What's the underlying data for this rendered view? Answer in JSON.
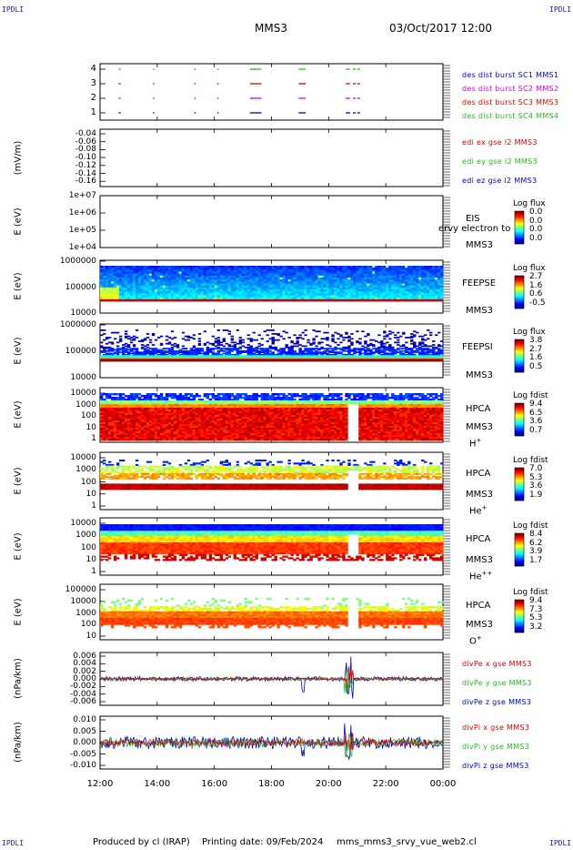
{
  "corner_mark": "IPDLI",
  "header": {
    "spacecraft": "MMS3",
    "datetime": "03/Oct/2017 12:00"
  },
  "footer": {
    "produced": "Produced by cl (IRAP)",
    "printing": "Printing date: 09/Feb/2024",
    "file": "mms_mms3_srvy_vue_web2.cl"
  },
  "colors": {
    "red": "#dd0000",
    "green": "#22bb22",
    "blue": "#0000cc",
    "magenta": "#dd00dd"
  },
  "chart_data": [
    {
      "type": "scatter",
      "id": "burst",
      "ylim": [
        0.5,
        4.5
      ],
      "ticks": [
        "4",
        "3",
        "2",
        "1"
      ],
      "legend": [
        {
          "text": "des dist burst SC1 MMS1",
          "color": "#0000cc"
        },
        {
          "text": "des dist burst SC2 MMS2",
          "color": "#dd00dd"
        },
        {
          "text": "des dist burst SC3 MMS3",
          "color": "#dd0000"
        },
        {
          "text": "des dist burst SC4 MMS4",
          "color": "#22bb22"
        }
      ],
      "segments_hours": [
        [
          12.65,
          12.72
        ],
        [
          13.85,
          13.9
        ],
        [
          15.3,
          15.35
        ],
        [
          16.1,
          16.15
        ],
        [
          17.25,
          17.65
        ],
        [
          18.95,
          19.2
        ],
        [
          20.6,
          20.75
        ],
        [
          20.85,
          20.95
        ],
        [
          21.0,
          21.1
        ]
      ]
    },
    {
      "type": "line",
      "id": "edi",
      "ylabel": "(mV/m)",
      "ticks": [
        "-0.04",
        "-0.06",
        "-0.08",
        "-0.10",
        "-0.12",
        "-0.14",
        "-0.16"
      ],
      "ylim": [
        -0.17,
        -0.03
      ],
      "legend": [
        {
          "text": "edi ex gse l2 MMS3",
          "color": "#dd0000"
        },
        {
          "text": "edi ey gse l2 MMS3",
          "color": "#22bb22"
        },
        {
          "text": "edi ez gse l2 MMS3",
          "color": "#0000cc"
        }
      ]
    },
    {
      "type": "heatmap",
      "id": "eis",
      "ylabel": "E (eV)",
      "log": true,
      "ticks": [
        "1e+07",
        "1e+06",
        "1e+05",
        "1e+04"
      ],
      "label": "EIS",
      "sublabel": "MMS3",
      "overlay": "ervy electron to",
      "cbar_title": "Log flux",
      "cbar_ticks": [
        "0.0",
        "0.0",
        "0.0",
        "0.0"
      ]
    },
    {
      "type": "heatmap",
      "id": "feepse",
      "ylabel": "E (eV)",
      "log": true,
      "ticks": [
        "1000000",
        "100000",
        "10000"
      ],
      "label": "FEEPSE",
      "sublabel": "MMS3",
      "cbar_title": "Log flux",
      "cbar_ticks": [
        "2.7",
        "1.6",
        "0.6",
        "-0.5"
      ]
    },
    {
      "type": "heatmap",
      "id": "feepsi",
      "ylabel": "E (eV)",
      "log": true,
      "ticks": [
        "1000000",
        "100000",
        "10000"
      ],
      "label": "FEEPSI",
      "sublabel": "MMS3",
      "cbar_title": "Log flux",
      "cbar_ticks": [
        "3.8",
        "2.7",
        "1.6",
        "0.5"
      ]
    },
    {
      "type": "heatmap",
      "id": "hpca_h",
      "ylabel": "E (eV)",
      "log": true,
      "ticks": [
        "10000",
        "1000",
        "100",
        "10",
        "1"
      ],
      "label": "HPCA",
      "sublabel": "MMS3",
      "species": "H",
      "charge": "+",
      "cbar_title": "Log fdist",
      "cbar_ticks": [
        "9.4",
        "6.5",
        "3.6",
        "0.7"
      ]
    },
    {
      "type": "heatmap",
      "id": "hpca_he",
      "ylabel": "E (eV)",
      "log": true,
      "ticks": [
        "10000",
        "1000",
        "100",
        "10",
        "1"
      ],
      "label": "HPCA",
      "sublabel": "MMS3",
      "species": "He",
      "charge": "+",
      "cbar_title": "Log fdist",
      "cbar_ticks": [
        "7.0",
        "5.3",
        "3.6",
        "1.9"
      ]
    },
    {
      "type": "heatmap",
      "id": "hpca_hepp",
      "ylabel": "E (eV)",
      "log": true,
      "ticks": [
        "10000",
        "1000",
        "100",
        "10",
        "1"
      ],
      "label": "HPCA",
      "sublabel": "MMS3",
      "species": "He",
      "charge": "++",
      "cbar_title": "Log fdist",
      "cbar_ticks": [
        "8.4",
        "6.2",
        "3.9",
        "1.7"
      ]
    },
    {
      "type": "heatmap",
      "id": "hpca_o",
      "ylabel": "E (eV)",
      "log": true,
      "ticks": [
        "100000",
        "10000",
        "1000",
        "100",
        "10"
      ],
      "label": "HPCA",
      "sublabel": "MMS3",
      "species": "O",
      "charge": "+",
      "cbar_title": "Log fdist",
      "cbar_ticks": [
        "9.4",
        "7.3",
        "5.3",
        "3.2"
      ]
    },
    {
      "type": "line",
      "id": "divpe",
      "ylabel": "(nPa/km)",
      "ticks": [
        "0.006",
        "0.004",
        "0.002",
        "0.000",
        "-0.002",
        "-0.004",
        "-0.006"
      ],
      "ylim": [
        -0.007,
        0.007
      ],
      "legend": [
        {
          "text": "divPe x gse MMS3",
          "color": "#dd0000"
        },
        {
          "text": "divPe y gse MMS3",
          "color": "#22bb22"
        },
        {
          "text": "divPe z gse MMS3",
          "color": "#0000cc"
        }
      ]
    },
    {
      "type": "line",
      "id": "divpi",
      "ylabel": "(nPa/km)",
      "ticks": [
        "0.010",
        "0.005",
        "0.000",
        "-0.005",
        "-0.010"
      ],
      "ylim": [
        -0.013,
        0.013
      ],
      "legend": [
        {
          "text": "divPi x gse MMS3",
          "color": "#dd0000"
        },
        {
          "text": "divPi y gse MMS3",
          "color": "#22bb22"
        },
        {
          "text": "divPi z gse MMS3",
          "color": "#0000cc"
        }
      ]
    }
  ],
  "x_axis": {
    "ticks": [
      "12:00",
      "14:00",
      "16:00",
      "18:00",
      "20:00",
      "22:00",
      "00:00"
    ],
    "range_hours": [
      12,
      24
    ]
  }
}
